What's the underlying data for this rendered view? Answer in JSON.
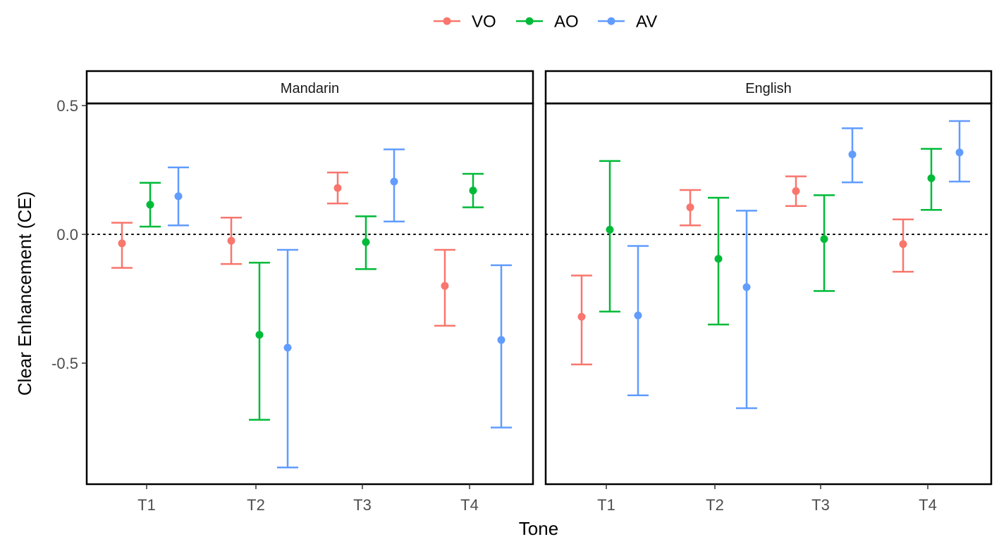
{
  "chart_data": {
    "type": "errorbar",
    "xlabel": "Tone",
    "ylabel": "Clear Enhancement (CE)",
    "categories": [
      "T1",
      "T2",
      "T3",
      "T4"
    ],
    "ylim": [
      -0.97,
      0.5
    ],
    "yticks": [
      0.5,
      0.0,
      -0.5
    ],
    "ytick_labels": [
      "0.5",
      "0.0",
      "-0.5"
    ],
    "reference_line": 0,
    "legend": {
      "position": "top",
      "entries": [
        {
          "name": "VO",
          "color": "#F8766D"
        },
        {
          "name": "AO",
          "color": "#00BA38"
        },
        {
          "name": "AV",
          "color": "#619CFF"
        }
      ]
    },
    "panels": [
      {
        "title": "Mandarin",
        "series": [
          {
            "name": "VO",
            "mean": [
              -0.035,
              -0.025,
              0.18,
              -0.2
            ],
            "lower": [
              -0.13,
              -0.115,
              0.12,
              -0.355
            ],
            "upper": [
              0.045,
              0.065,
              0.24,
              -0.06
            ]
          },
          {
            "name": "AO",
            "mean": [
              0.115,
              -0.39,
              -0.03,
              0.17
            ],
            "lower": [
              0.03,
              -0.72,
              -0.135,
              0.105
            ],
            "upper": [
              0.2,
              -0.11,
              0.07,
              0.235
            ]
          },
          {
            "name": "AV",
            "mean": [
              0.148,
              -0.44,
              0.205,
              -0.41
            ],
            "lower": [
              0.035,
              -0.905,
              0.05,
              -0.75
            ],
            "upper": [
              0.26,
              -0.06,
              0.33,
              -0.12
            ]
          }
        ]
      },
      {
        "title": "English",
        "series": [
          {
            "name": "VO",
            "mean": [
              -0.32,
              0.105,
              0.168,
              -0.038
            ],
            "lower": [
              -0.505,
              0.035,
              0.11,
              -0.145
            ],
            "upper": [
              -0.16,
              0.172,
              0.225,
              0.058
            ]
          },
          {
            "name": "AO",
            "mean": [
              0.018,
              -0.095,
              -0.018,
              0.218
            ],
            "lower": [
              -0.3,
              -0.35,
              -0.22,
              0.095
            ],
            "upper": [
              0.285,
              0.142,
              0.152,
              0.332
            ]
          },
          {
            "name": "AV",
            "mean": [
              -0.315,
              -0.205,
              0.31,
              0.318
            ],
            "lower": [
              -0.625,
              -0.675,
              0.202,
              0.205
            ],
            "upper": [
              -0.045,
              0.092,
              0.412,
              0.44
            ]
          }
        ]
      }
    ]
  }
}
